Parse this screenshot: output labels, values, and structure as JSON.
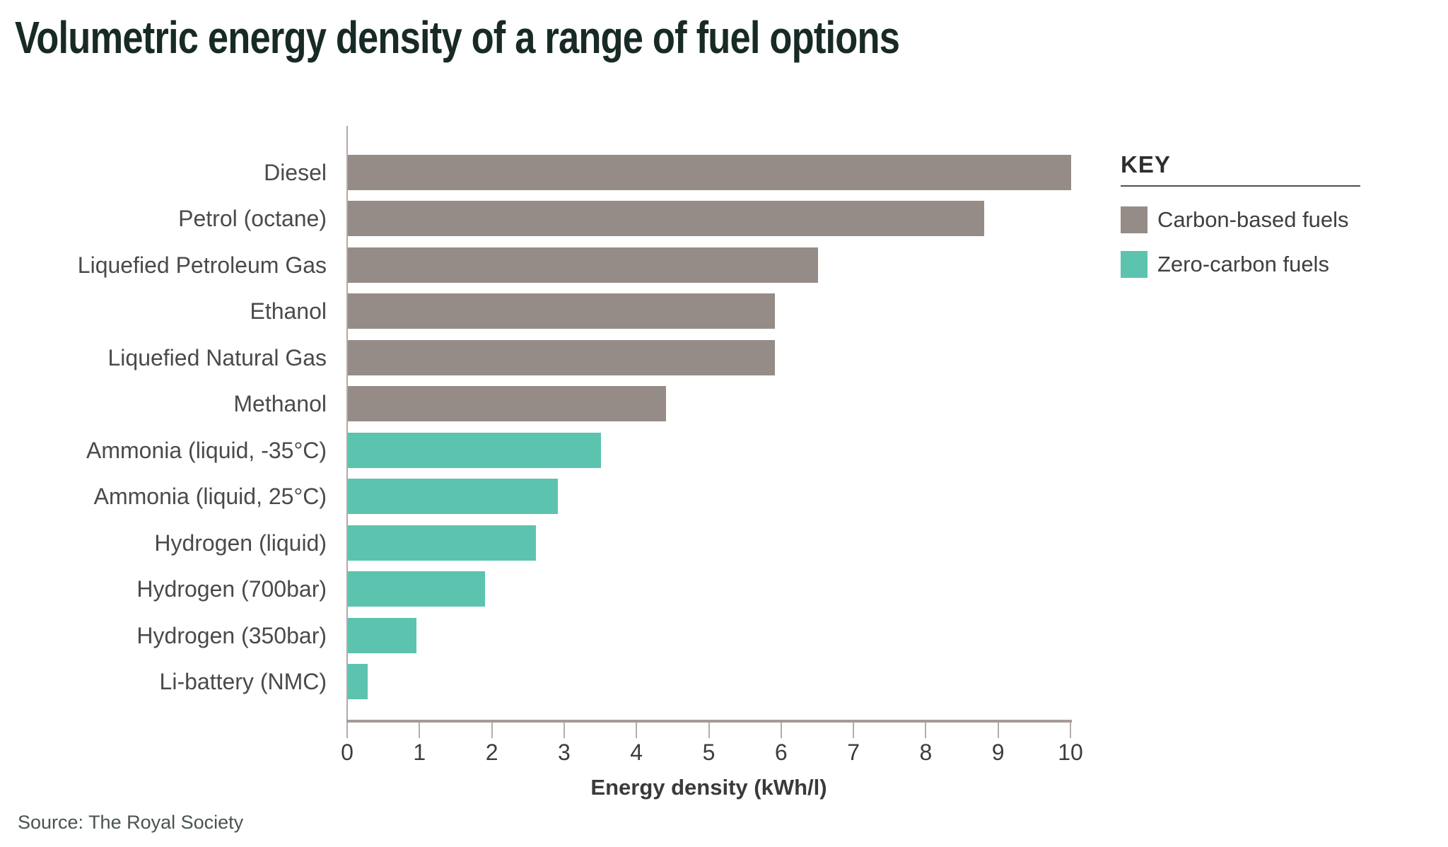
{
  "title": "Volumetric energy density of a range of fuel options",
  "source": "Source: The Royal Society",
  "legend": {
    "title": "KEY",
    "items": [
      {
        "label": "Carbon-based fuels",
        "color": "#968c87",
        "series": "carbon"
      },
      {
        "label": "Zero-carbon fuels",
        "color": "#5cc3ae",
        "series": "zero"
      }
    ]
  },
  "chart_data": {
    "type": "bar",
    "orientation": "horizontal",
    "title": "Volumetric energy density of a range of fuel options",
    "xlabel": "Energy density (kWh/l)",
    "ylabel": "",
    "xlim": [
      0,
      10
    ],
    "xticks": [
      "0",
      "1",
      "2",
      "3",
      "4",
      "5",
      "6",
      "7",
      "8",
      "9",
      "10"
    ],
    "grid": false,
    "legend_position": "top-right",
    "categories": [
      "Diesel",
      "Petrol (octane)",
      "Liquefied Petroleum Gas",
      "Ethanol",
      "Liquefied Natural Gas",
      "Methanol",
      "Ammonia (liquid, -35°C)",
      "Ammonia (liquid, 25°C)",
      "Hydrogen (liquid)",
      "Hydrogen (700bar)",
      "Hydrogen (350bar)",
      "Li-battery (NMC)"
    ],
    "values": [
      10.0,
      8.8,
      6.5,
      5.9,
      5.9,
      4.4,
      3.5,
      2.9,
      2.6,
      1.9,
      0.95,
      0.27
    ],
    "series_by_point": [
      "carbon",
      "carbon",
      "carbon",
      "carbon",
      "carbon",
      "carbon",
      "zero",
      "zero",
      "zero",
      "zero",
      "zero",
      "zero"
    ],
    "colors": {
      "carbon": "#968c87",
      "zero": "#5cc3ae"
    }
  }
}
